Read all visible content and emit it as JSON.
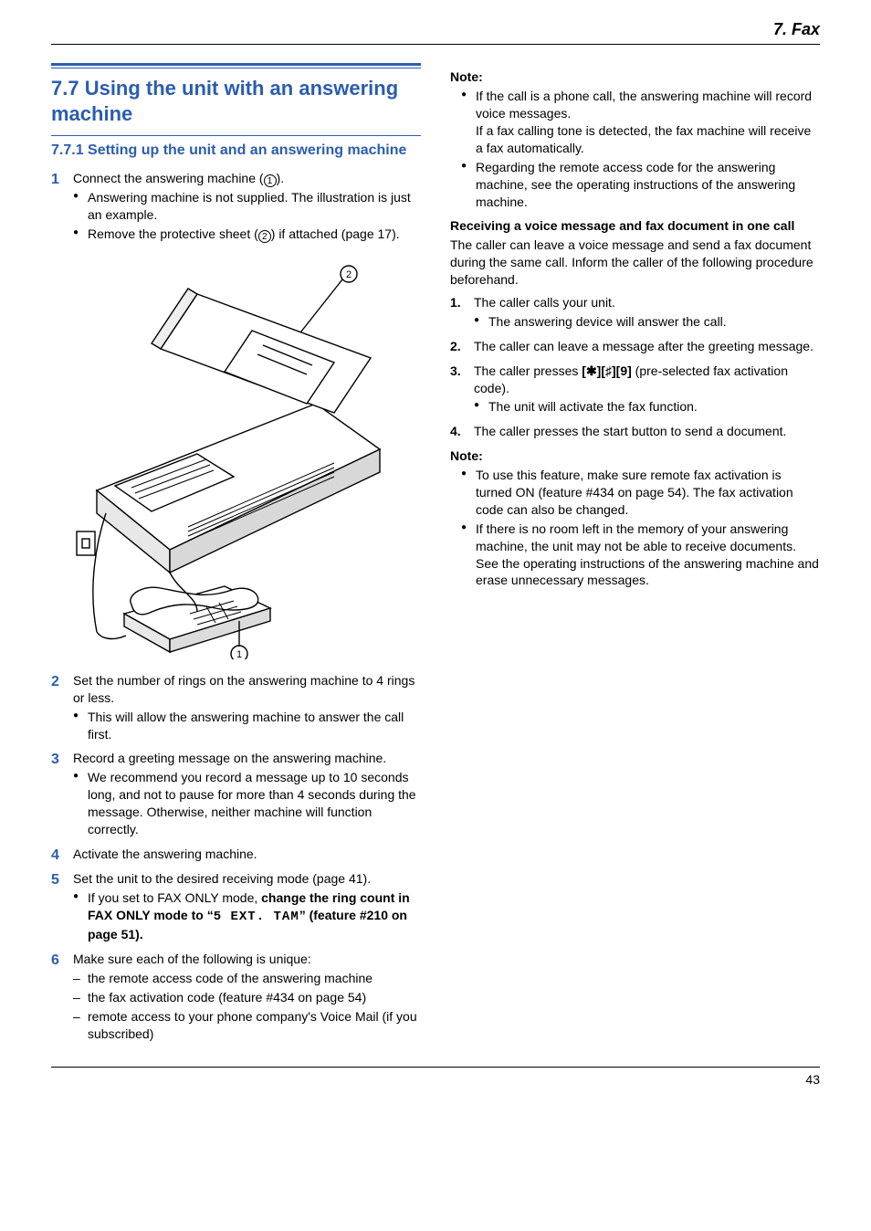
{
  "header": {
    "chapter": "7. Fax"
  },
  "page_number": "43",
  "left": {
    "section_title": "7.7 Using the unit with an answering machine",
    "subsection_title": "7.7.1 Setting up the unit and an answering machine",
    "steps": [
      {
        "num": "1",
        "text_pre": "Connect the answering machine (",
        "marker": "1",
        "text_post": ").",
        "bullets": [
          "Answering machine is not supplied. The illustration is just an example.",
          {
            "pre": "Remove the protective sheet (",
            "marker": "2",
            "post": ") if attached (page 17)."
          }
        ]
      },
      {
        "num": "2",
        "text": "Set the number of rings on the answering machine to 4 rings or less.",
        "bullets": [
          "This will allow the answering machine to answer the call first."
        ]
      },
      {
        "num": "3",
        "text": "Record a greeting message on the answering machine.",
        "bullets": [
          "We recommend you record a message up to 10 seconds long, and not to pause for more than 4 seconds during the message. Otherwise, neither machine will function correctly."
        ]
      },
      {
        "num": "4",
        "text": "Activate the answering machine."
      },
      {
        "num": "5",
        "text": "Set the unit to the desired receiving mode (page 41).",
        "bullets_html": [
          "If you set to FAX ONLY mode, <span class=\"strong\">change the ring count in FAX ONLY mode to “<span class=\"tt\">5 EXT. TAM</span>” (feature #210 on page 51).</span>"
        ]
      },
      {
        "num": "6",
        "text": "Make sure each of the following is unique:",
        "dashes": [
          "the remote access code of the answering machine",
          "the fax activation code (feature #434 on page 54)",
          "remote access to your phone company's Voice Mail (if you subscribed)"
        ]
      }
    ],
    "illustration_markers": {
      "top": "2",
      "bottom": "1"
    }
  },
  "right": {
    "note1_head": "Note:",
    "note1_bullets": [
      "If the call is a phone call, the answering machine will record voice messages.\nIf a fax calling tone is detected, the fax machine will receive a fax automatically.",
      "Regarding the remote access code for the answering machine, see the operating instructions of the answering machine."
    ],
    "para_head": "Receiving a voice message and fax document in one call",
    "para_body": "The caller can leave a voice message and send a fax document during the same call. Inform the caller of the following procedure beforehand.",
    "ol": [
      {
        "text": "The caller calls your unit.",
        "bullets": [
          "The answering device will answer the call."
        ]
      },
      {
        "text": "The caller can leave a message after the greeting message."
      },
      {
        "pre": "The caller presses ",
        "keys": "[✱][♯][9]",
        "post": " (pre-selected fax activation code).",
        "bullets": [
          "The unit will activate the fax function."
        ]
      },
      {
        "text": "The caller presses the start button to send a document."
      }
    ],
    "note2_head": "Note:",
    "note2_bullets": [
      "To use this feature, make sure remote fax activation is turned ON (feature #434 on page 54). The fax activation code can also be changed.",
      "If there is no room left in the memory of your answering machine, the unit may not be able to receive documents. See the operating instructions of the answering machine and erase unnecessary messages."
    ]
  },
  "colors": {
    "accent": "#2a5db0"
  }
}
